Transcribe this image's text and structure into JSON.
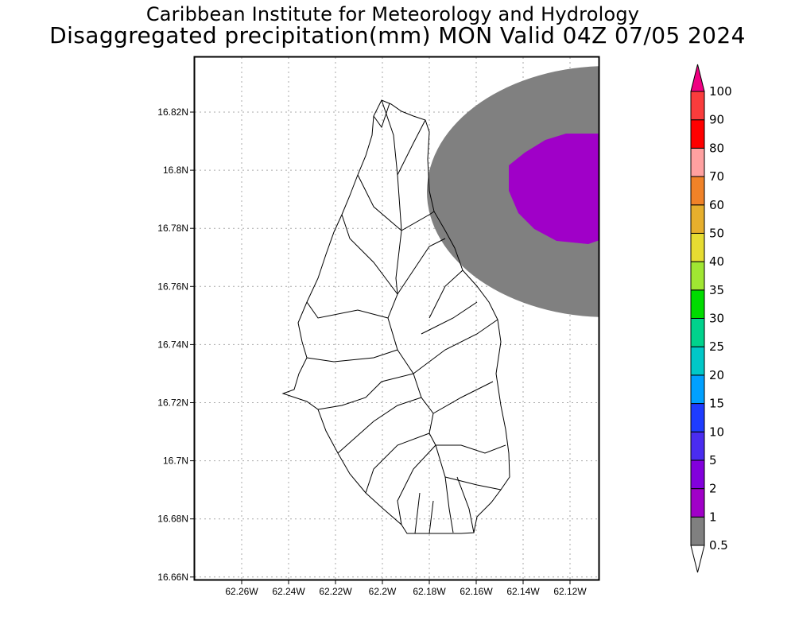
{
  "header": {
    "title": "Caribbean Institute for Meteorology and Hydrology",
    "subtitle": "Disaggregated precipitation(mm) MON Valid 04Z 07/05 2024"
  },
  "map": {
    "x_ticks": [
      "62.26W",
      "62.24W",
      "62.22W",
      "62.2W",
      "62.18W",
      "62.16W",
      "62.14W",
      "62.12W"
    ],
    "y_ticks": [
      "16.82N",
      "16.8N",
      "16.78N",
      "16.76N",
      "16.74N",
      "16.72N",
      "16.7N",
      "16.68N",
      "16.66N"
    ],
    "lon_range": [
      -62.278,
      -62.107
    ],
    "lat_range": [
      16.659,
      16.839
    ]
  },
  "colorbar": {
    "labels": [
      "0.5",
      "1",
      "2",
      "5",
      "10",
      "15",
      "20",
      "25",
      "30",
      "35",
      "40",
      "50",
      "60",
      "70",
      "80",
      "90",
      "100"
    ],
    "colors": [
      "#808080",
      "#a000c8",
      "#8200dc",
      "#4a2cf0",
      "#1e3cff",
      "#00a0ff",
      "#00c8c8",
      "#00d28c",
      "#00dc00",
      "#a0e632",
      "#e6dc32",
      "#e6af2d",
      "#f08228",
      "#ffa0a0",
      "#ff0000",
      "#fa3c3c"
    ],
    "over_color": "#f00082",
    "under_color": "#ffffff"
  }
}
